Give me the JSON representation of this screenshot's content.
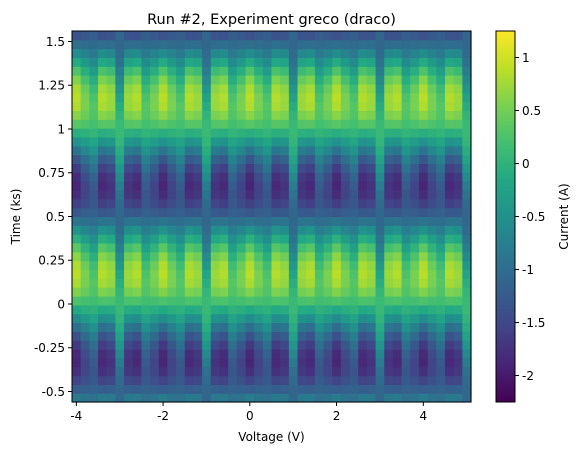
{
  "chart_data": {
    "type": "heatmap",
    "title": "Run #2, Experiment greco (draco)",
    "xlabel": "Voltage (V)",
    "ylabel": "Time (ks)",
    "colorbar_label": "Current (A)",
    "colormap": "viridis",
    "xlim": [
      -4.1,
      5.1
    ],
    "ylim": [
      -0.56,
      1.56
    ],
    "clim": [
      -2.25,
      1.25
    ],
    "x_ticks": [
      -4,
      -2,
      0,
      2,
      4
    ],
    "x_tick_labels": [
      "-4",
      "-2",
      "0",
      "2",
      "4"
    ],
    "y_ticks": [
      -0.5,
      -0.25,
      0,
      0.25,
      0.5,
      0.75,
      1,
      1.25,
      1.5
    ],
    "y_tick_labels": [
      "-0.5",
      "-0.25",
      "0",
      "0.25",
      "0.5",
      "0.75",
      "1",
      "1.25",
      "1.5"
    ],
    "colorbar_ticks": [
      -2,
      -1.5,
      -1,
      -0.5,
      0,
      0.5,
      1
    ],
    "colorbar_tick_labels": [
      "-2",
      "-1.5",
      "-1",
      "-0.5",
      "0",
      "0.5",
      "1"
    ],
    "grid": {
      "x_start": -4.1,
      "x_step": 0.2,
      "x_count": 46,
      "y_start": -0.56,
      "y_step": 0.0505,
      "y_count": 42
    },
    "value_model": "Current ≈ 0.6·cos(2π·t) + 1.25·sin(2π·t)·|cos(1.5π·V)|^0.7 − 0.5"
  }
}
